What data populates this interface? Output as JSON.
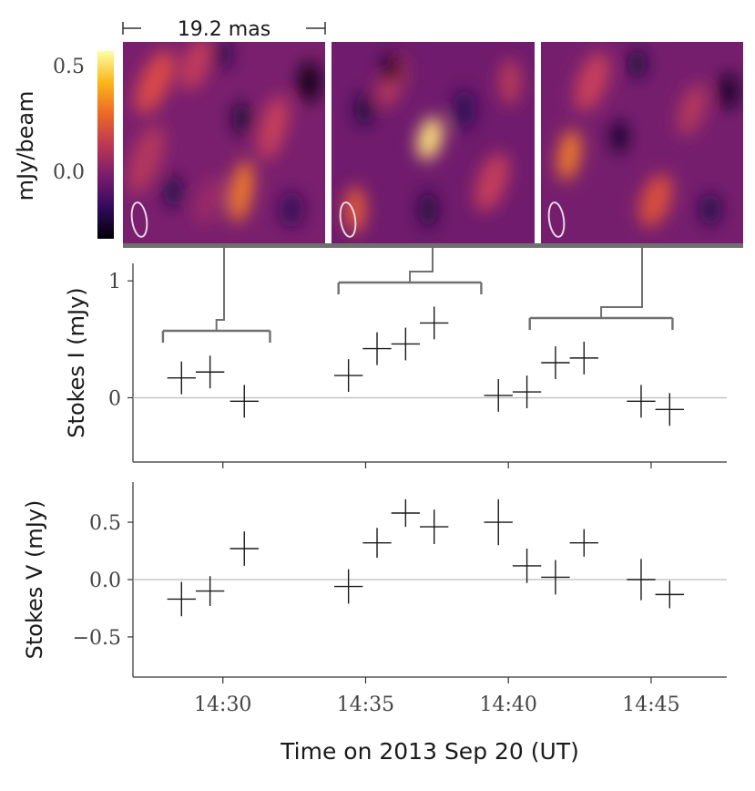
{
  "scale_bar": {
    "label": "19.2 mas"
  },
  "colorbar": {
    "label": "mJy/beam",
    "ticks": [
      {
        "value": 0.5,
        "label": "0.5"
      },
      {
        "value": 0.0,
        "label": "0.0"
      }
    ],
    "range": [
      -0.33,
      0.6
    ],
    "colors": [
      "#000004",
      "#320a5e",
      "#781c6d",
      "#bc3754",
      "#ed6925",
      "#fbb61a",
      "#fcffa4"
    ]
  },
  "colors": {
    "marker": "#1a1a1a",
    "axis": "#333333",
    "reference_line": "#bdbdbd",
    "bracket": "#707070",
    "beam_ellipse": "#e6d4e6"
  },
  "chart_data": [
    {
      "type": "scatter",
      "name": "stokes-i",
      "ylabel": "Stokes I (mJy)",
      "ylim": [
        -0.55,
        1.15
      ],
      "yticks": [
        {
          "value": 0,
          "label": "0"
        },
        {
          "value": 1,
          "label": "1"
        }
      ],
      "reference_y": 0,
      "x_minutes_since_1430": [
        -1.45,
        -0.45,
        0.75,
        4.4,
        5.4,
        6.4,
        7.4,
        9.65,
        10.65,
        11.65,
        12.65,
        14.65,
        15.65
      ],
      "y": [
        0.17,
        0.22,
        -0.03,
        0.19,
        0.42,
        0.46,
        0.64,
        0.02,
        0.05,
        0.3,
        0.34,
        -0.03,
        -0.1
      ],
      "y_err": [
        0.14,
        0.14,
        0.14,
        0.14,
        0.14,
        0.14,
        0.14,
        0.14,
        0.14,
        0.14,
        0.14,
        0.14,
        0.14
      ],
      "x_err": [
        0.5,
        0.5,
        0.5,
        0.5,
        0.5,
        0.5,
        0.5,
        0.5,
        0.5,
        0.5,
        0.5,
        0.5,
        0.5
      ],
      "image_intervals_minutes": [
        [
          -2.1,
          1.65
        ],
        [
          4.05,
          9.05
        ],
        [
          10.75,
          15.75
        ]
      ]
    },
    {
      "type": "scatter",
      "name": "stokes-v",
      "ylabel": "Stokes V (mJy)",
      "xlabel": "Time on 2013 Sep 20 (UT)",
      "ylim": [
        -0.85,
        0.85
      ],
      "yticks": [
        {
          "value": 0.5,
          "label": "0.5"
        },
        {
          "value": 0.0,
          "label": "0.0"
        },
        {
          "value": -0.5,
          "label": "−0.5"
        }
      ],
      "reference_y": 0,
      "x_minutes_since_1430": [
        -1.45,
        -0.45,
        0.75,
        4.4,
        5.4,
        6.4,
        7.4,
        9.65,
        10.65,
        11.65,
        12.65,
        14.65,
        15.65
      ],
      "y": [
        -0.17,
        -0.1,
        0.27,
        -0.06,
        0.32,
        0.58,
        0.46,
        0.5,
        0.12,
        0.02,
        0.32,
        0.0,
        -0.13
      ],
      "y_err": [
        0.15,
        0.13,
        0.15,
        0.15,
        0.13,
        0.12,
        0.15,
        0.2,
        0.15,
        0.15,
        0.12,
        0.18,
        0.12
      ],
      "x_err": [
        0.5,
        0.5,
        0.5,
        0.5,
        0.5,
        0.5,
        0.5,
        0.5,
        0.5,
        0.5,
        0.5,
        0.5,
        0.5
      ],
      "xlim_minutes": [
        -3.15,
        17.65
      ],
      "xticks": [
        {
          "value": 0,
          "label": "14:30"
        },
        {
          "value": 5,
          "label": "14:35"
        },
        {
          "value": 10,
          "label": "14:40"
        },
        {
          "value": 15,
          "label": "14:45"
        }
      ]
    }
  ]
}
